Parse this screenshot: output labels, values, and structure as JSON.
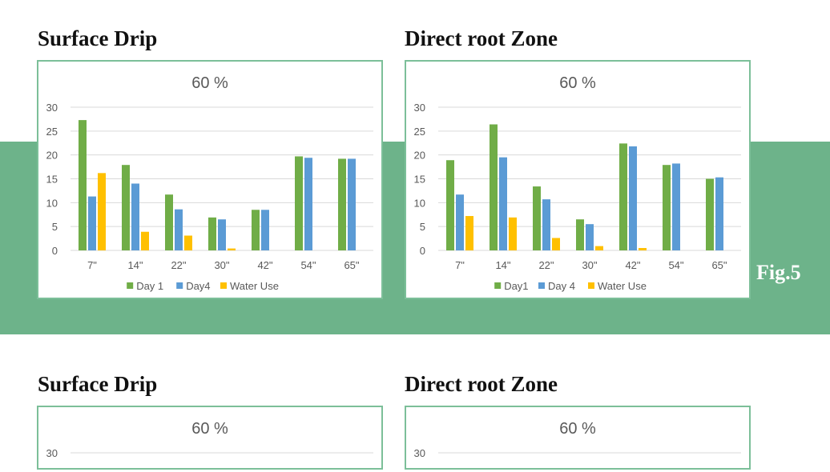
{
  "figure_label": "Fig.5",
  "colors": {
    "day1": "#70ad47",
    "day4": "#5b9bd5",
    "water": "#ffc000",
    "band": "#6db38a"
  },
  "panels": [
    {
      "heading": "Surface Drip",
      "chart_data": {
        "type": "bar",
        "title": "60 %",
        "categories": [
          "7\"",
          "14\"",
          "22\"",
          "30\"",
          "42\"",
          "54\"",
          "65\""
        ],
        "series": [
          {
            "name": "Day 1",
            "values": [
              27.3,
              17.9,
              11.7,
              6.9,
              8.5,
              19.7,
              19.2
            ]
          },
          {
            "name": "Day4",
            "values": [
              11.3,
              14.0,
              8.6,
              6.5,
              8.5,
              19.4,
              19.2
            ]
          },
          {
            "name": "Water Use",
            "values": [
              16.2,
              3.9,
              3.1,
              0.4,
              0,
              0,
              0
            ]
          }
        ],
        "ylim": [
          0,
          30
        ],
        "yticks": [
          "0",
          "5",
          "10",
          "15",
          "20",
          "25",
          "30"
        ],
        "legend": "bottom",
        "grid": true
      }
    },
    {
      "heading": "Direct root Zone",
      "chart_data": {
        "type": "bar",
        "title": "60 %",
        "categories": [
          "7\"",
          "14\"",
          "22\"",
          "30\"",
          "42\"",
          "54\"",
          "65\""
        ],
        "series": [
          {
            "name": "Day1",
            "values": [
              18.9,
              26.4,
              13.4,
              6.5,
              22.4,
              17.9,
              15.0
            ]
          },
          {
            "name": "Day 4",
            "values": [
              11.7,
              19.5,
              10.7,
              5.5,
              21.8,
              18.2,
              15.3
            ]
          },
          {
            "name": "Water Use",
            "values": [
              7.2,
              6.9,
              2.6,
              0.9,
              0.5,
              0,
              0
            ]
          }
        ],
        "ylim": [
          0,
          30
        ],
        "yticks": [
          "0",
          "5",
          "10",
          "15",
          "20",
          "25",
          "30"
        ],
        "legend": "bottom",
        "grid": true
      }
    },
    {
      "heading": "Surface Drip",
      "chart_data": {
        "type": "bar",
        "title": "60 %",
        "yticks": [
          "30"
        ]
      }
    },
    {
      "heading": "Direct root Zone",
      "chart_data": {
        "type": "bar",
        "title": "60 %",
        "yticks": [
          "30"
        ]
      }
    }
  ]
}
